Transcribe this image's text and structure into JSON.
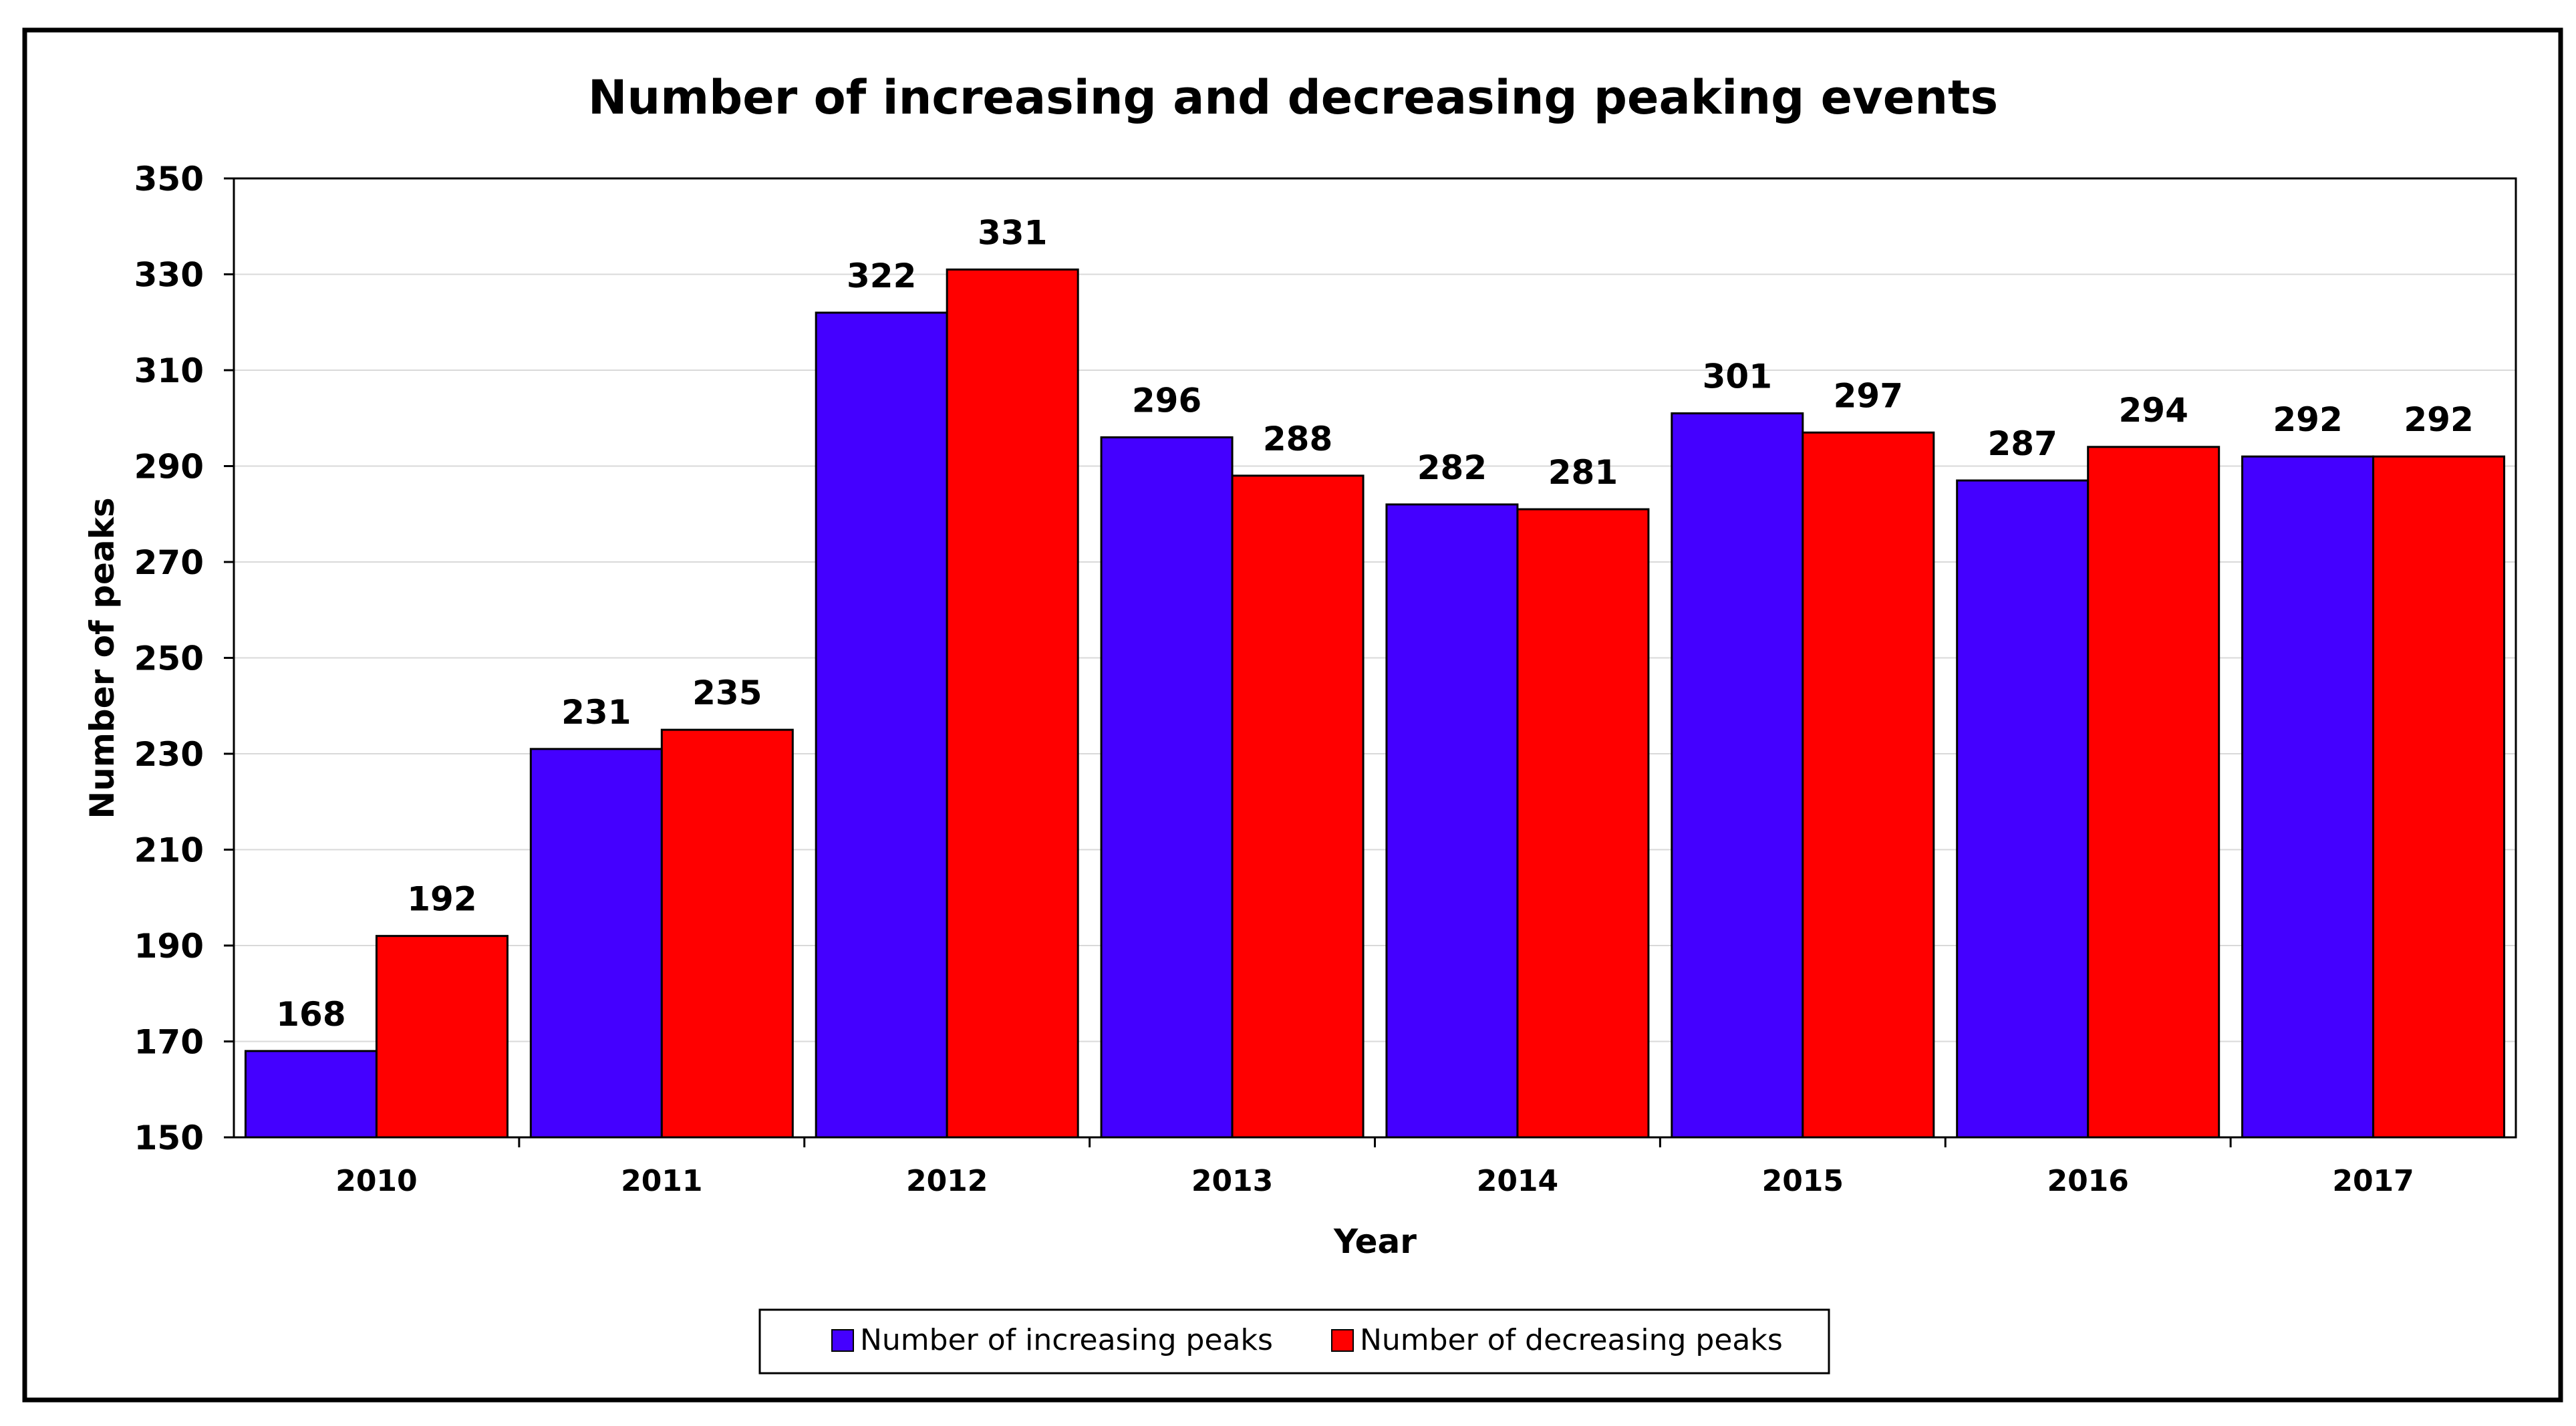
{
  "chart_data": {
    "type": "bar",
    "title": "Number of increasing and decreasing peaking events",
    "xlabel": "Year",
    "ylabel": "Number of peaks",
    "categories": [
      "2010",
      "2011",
      "2012",
      "2013",
      "2014",
      "2015",
      "2016",
      "2017"
    ],
    "series": [
      {
        "name": "Number of increasing peaks",
        "color": "#4400FF",
        "values": [
          168,
          231,
          322,
          296,
          282,
          301,
          287,
          292
        ]
      },
      {
        "name": "Number of decreasing peaks",
        "color": "#FF0000",
        "values": [
          192,
          235,
          331,
          288,
          281,
          297,
          294,
          292
        ]
      }
    ],
    "ylim": [
      150,
      350
    ],
    "yticks": [
      150,
      170,
      190,
      210,
      230,
      250,
      270,
      290,
      310,
      330,
      350
    ],
    "grid": true,
    "legend_position": "bottom-center"
  }
}
